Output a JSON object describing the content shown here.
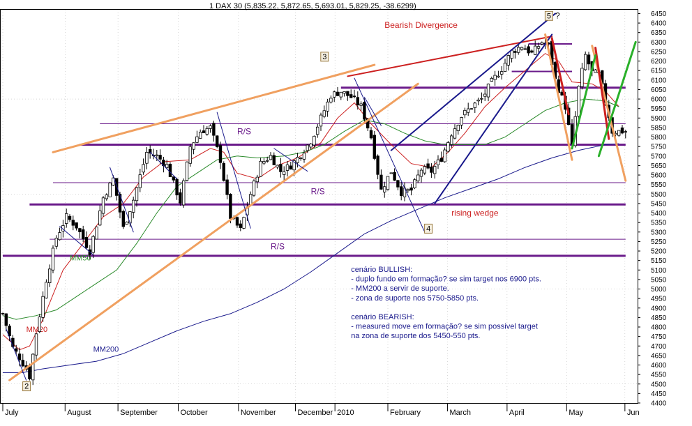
{
  "chart_data": {
    "type": "candlestick",
    "title": "1 DAX 30 (5,835.22, 5,872.65, 5,693.01, 5,829.25, -38.6299)",
    "y_ticks": [
      4400,
      4450,
      4500,
      4550,
      4600,
      4650,
      4700,
      4750,
      4800,
      4850,
      4900,
      4950,
      5000,
      5050,
      5100,
      5150,
      5200,
      5250,
      5300,
      5350,
      5400,
      5450,
      5500,
      5550,
      5600,
      5650,
      5700,
      5750,
      5800,
      5850,
      5900,
      5950,
      6000,
      6050,
      6100,
      6150,
      6200,
      6250,
      6300,
      6350,
      6400,
      6450
    ],
    "ylim": [
      4400,
      6470
    ],
    "x_labels": [
      "July",
      "August",
      "September",
      "October",
      "November",
      "December",
      "2010",
      "February",
      "March",
      "April",
      "May",
      "Jun"
    ],
    "x_label_at": [
      0,
      18.6,
      34.4,
      52.4,
      70.4,
      87.4,
      99.2,
      115,
      132.8,
      150.6,
      168.4,
      185.8
    ],
    "n_bars": 187,
    "anchors": [
      [
        0,
        4870
      ],
      [
        3,
        4690
      ],
      [
        5,
        4640
      ],
      [
        7,
        4580
      ],
      [
        8,
        4540
      ],
      [
        10,
        4770
      ],
      [
        13,
        5050
      ],
      [
        16,
        5270
      ],
      [
        19,
        5380
      ],
      [
        22,
        5330
      ],
      [
        26,
        5200
      ],
      [
        30,
        5480
      ],
      [
        33,
        5580
      ],
      [
        36,
        5320
      ],
      [
        39,
        5470
      ],
      [
        43,
        5720
      ],
      [
        46,
        5700
      ],
      [
        49,
        5650
      ],
      [
        53,
        5460
      ],
      [
        56,
        5750
      ],
      [
        59,
        5830
      ],
      [
        62,
        5850
      ],
      [
        65,
        5680
      ],
      [
        68,
        5380
      ],
      [
        71,
        5310
      ],
      [
        74,
        5500
      ],
      [
        77,
        5660
      ],
      [
        80,
        5700
      ],
      [
        83,
        5620
      ],
      [
        86,
        5650
      ],
      [
        89,
        5710
      ],
      [
        92,
        5780
      ],
      [
        95,
        5900
      ],
      [
        98,
        6020
      ],
      [
        101,
        6040
      ],
      [
        104,
        6010
      ],
      [
        107,
        5960
      ],
      [
        110,
        5800
      ],
      [
        113,
        5520
      ],
      [
        116,
        5620
      ],
      [
        119,
        5510
      ],
      [
        122,
        5520
      ],
      [
        125,
        5630
      ],
      [
        128,
        5620
      ],
      [
        131,
        5690
      ],
      [
        134,
        5820
      ],
      [
        137,
        5910
      ],
      [
        140,
        5960
      ],
      [
        143,
        6000
      ],
      [
        146,
        6090
      ],
      [
        149,
        6160
      ],
      [
        152,
        6250
      ],
      [
        155,
        6280
      ],
      [
        158,
        6240
      ],
      [
        161,
        6300
      ],
      [
        163,
        6280
      ],
      [
        165,
        6100
      ],
      [
        168,
        5960
      ],
      [
        170,
        5750
      ],
      [
        172,
        6060
      ],
      [
        174,
        6230
      ],
      [
        176,
        6140
      ],
      [
        178,
        6130
      ],
      [
        180,
        5990
      ],
      [
        182,
        5830
      ],
      [
        184,
        5830
      ]
    ],
    "series": [
      {
        "name": "MM20",
        "color": "#cc2020",
        "points": [
          [
            0,
            4760
          ],
          [
            5,
            4680
          ],
          [
            8,
            4700
          ],
          [
            12,
            4840
          ],
          [
            18,
            5100
          ],
          [
            24,
            5240
          ],
          [
            30,
            5380
          ],
          [
            36,
            5450
          ],
          [
            42,
            5590
          ],
          [
            48,
            5670
          ],
          [
            56,
            5680
          ],
          [
            62,
            5740
          ],
          [
            66,
            5720
          ],
          [
            70,
            5610
          ],
          [
            76,
            5580
          ],
          [
            82,
            5650
          ],
          [
            88,
            5690
          ],
          [
            95,
            5770
          ],
          [
            100,
            5900
          ],
          [
            105,
            5980
          ],
          [
            110,
            5870
          ],
          [
            116,
            5760
          ],
          [
            122,
            5660
          ],
          [
            128,
            5640
          ],
          [
            133,
            5720
          ],
          [
            138,
            5820
          ],
          [
            144,
            5960
          ],
          [
            150,
            6060
          ],
          [
            156,
            6150
          ],
          [
            162,
            6240
          ],
          [
            166,
            6200
          ],
          [
            170,
            6090
          ],
          [
            176,
            6080
          ],
          [
            180,
            6040
          ],
          [
            184,
            5960
          ]
        ]
      },
      {
        "name": "MM50",
        "color": "#2a8a2a",
        "points": [
          [
            0,
            4860
          ],
          [
            4,
            4840
          ],
          [
            10,
            4860
          ],
          [
            16,
            4890
          ],
          [
            22,
            4960
          ],
          [
            28,
            5030
          ],
          [
            34,
            5100
          ],
          [
            40,
            5240
          ],
          [
            46,
            5400
          ],
          [
            52,
            5540
          ],
          [
            58,
            5610
          ],
          [
            64,
            5680
          ],
          [
            70,
            5700
          ],
          [
            76,
            5690
          ],
          [
            84,
            5700
          ],
          [
            90,
            5720
          ],
          [
            96,
            5760
          ],
          [
            102,
            5830
          ],
          [
            108,
            5890
          ],
          [
            114,
            5870
          ],
          [
            120,
            5820
          ],
          [
            126,
            5780
          ],
          [
            132,
            5760
          ],
          [
            138,
            5760
          ],
          [
            144,
            5760
          ],
          [
            150,
            5800
          ],
          [
            156,
            5870
          ],
          [
            162,
            5940
          ],
          [
            168,
            5980
          ],
          [
            174,
            6000
          ],
          [
            180,
            5990
          ],
          [
            184,
            5960
          ]
        ]
      },
      {
        "name": "MM200",
        "color": "#1a1a8c",
        "points": [
          [
            0,
            4560
          ],
          [
            6,
            4560
          ],
          [
            12,
            4580
          ],
          [
            20,
            4600
          ],
          [
            28,
            4620
          ],
          [
            36,
            4660
          ],
          [
            44,
            4720
          ],
          [
            52,
            4780
          ],
          [
            60,
            4830
          ],
          [
            68,
            4870
          ],
          [
            76,
            4930
          ],
          [
            84,
            5000
          ],
          [
            92,
            5090
          ],
          [
            100,
            5190
          ],
          [
            108,
            5290
          ],
          [
            116,
            5360
          ],
          [
            124,
            5420
          ],
          [
            132,
            5480
          ],
          [
            140,
            5530
          ],
          [
            148,
            5580
          ],
          [
            156,
            5640
          ],
          [
            164,
            5690
          ],
          [
            172,
            5730
          ],
          [
            180,
            5760
          ],
          [
            184,
            5765
          ]
        ]
      }
    ],
    "series_labels": [
      {
        "name": "MM20",
        "color": "#cc2020",
        "anchor": [
          7,
          4775
        ]
      },
      {
        "name": "MM50",
        "color": "#2a8a2a",
        "anchor": [
          20,
          5150
        ]
      },
      {
        "name": "MM200",
        "color": "#1a1a8c",
        "anchor": [
          27,
          4670
        ]
      }
    ],
    "horizontal_lines": [
      {
        "y": 5175,
        "x": [
          0,
          186
        ],
        "color": "#6a1a8a",
        "width": 3
      },
      {
        "y": 5262,
        "x": [
          14,
          186
        ],
        "color": "#6a1a8a",
        "width": 1
      },
      {
        "y": 5445,
        "x": [
          8,
          186
        ],
        "color": "#6a1a8a",
        "width": 3
      },
      {
        "y": 5560,
        "x": [
          15,
          186
        ],
        "color": "#6a1a8a",
        "width": 1
      },
      {
        "y": 5760,
        "x": [
          23,
          186
        ],
        "color": "#6a1a8a",
        "width": 3
      },
      {
        "y": 5870,
        "x": [
          29,
          186
        ],
        "color": "#6a1a8a",
        "width": 1
      },
      {
        "y": 6060,
        "x": [
          101,
          186
        ],
        "color": "#6a1a8a",
        "width": 3
      },
      {
        "y": 6145,
        "x": [
          152,
          170
        ],
        "color": "#6a1a8a",
        "width": 2
      },
      {
        "y": 6290,
        "x": [
          157,
          170
        ],
        "color": "#6a1a8a",
        "width": 2
      }
    ],
    "trend_lines": [
      {
        "from": [
          2,
          4520
        ],
        "to": [
          124,
          6080
        ],
        "color": "#f0a060",
        "width": 3
      },
      {
        "from": [
          15,
          5720
        ],
        "to": [
          111,
          6180
        ],
        "color": "#f0a060",
        "width": 3
      },
      {
        "from": [
          103,
          6120
        ],
        "to": [
          164,
          6330
        ],
        "color": "#cc2020",
        "width": 2
      },
      {
        "from": [
          116,
          5730
        ],
        "to": [
          165,
          6450
        ],
        "color": "#1a1a8c",
        "width": 2
      },
      {
        "from": [
          129,
          5450
        ],
        "to": [
          164,
          6340
        ],
        "color": "#1a1a8c",
        "width": 2
      },
      {
        "from": [
          162,
          6340
        ],
        "to": [
          170,
          5680
        ],
        "color": "#f0a060",
        "width": 3
      },
      {
        "from": [
          176,
          6280
        ],
        "to": [
          186,
          5570
        ],
        "color": "#f0a060",
        "width": 3
      },
      {
        "from": [
          164,
          6320
        ],
        "to": [
          169,
          5920
        ],
        "color": "#cc2020",
        "width": 3
      },
      {
        "from": [
          177,
          6270
        ],
        "to": [
          181,
          5790
        ],
        "color": "#cc2020",
        "width": 3
      },
      {
        "from": [
          170,
          5740
        ],
        "to": [
          177,
          6230
        ],
        "color": "#2ab02a",
        "width": 3
      },
      {
        "from": [
          178,
          5700
        ],
        "to": [
          189,
          6300
        ],
        "color": "#2ab02a",
        "width": 3
      },
      {
        "from": [
          105,
          6110
        ],
        "to": [
          126,
          5300
        ],
        "color": "#1a1a8c",
        "width": 1
      },
      {
        "from": [
          64,
          5930
        ],
        "to": [
          74,
          5320
        ],
        "color": "#1a1a8c",
        "width": 1
      },
      {
        "from": [
          1,
          4790
        ],
        "to": [
          7,
          4520
        ],
        "color": "#1a1a8c",
        "width": 1
      },
      {
        "from": [
          17,
          5330
        ],
        "to": [
          27,
          5180
        ],
        "color": "#1a1a8c",
        "width": 1
      },
      {
        "from": [
          32,
          5640
        ],
        "to": [
          39,
          5300
        ],
        "color": "#1a1a8c",
        "width": 1
      },
      {
        "from": [
          44,
          5720
        ],
        "to": [
          52,
          5580
        ],
        "color": "#1a1a8c",
        "width": 1
      },
      {
        "from": [
          81,
          5740
        ],
        "to": [
          91,
          5620
        ],
        "color": "#1a1a8c",
        "width": 1
      },
      {
        "from": [
          108,
          6010
        ],
        "to": [
          113,
          5860
        ],
        "color": "#1a1a8c",
        "width": 1
      }
    ],
    "annotations": [
      {
        "text": "Bearish Divergence",
        "color": "#cc2020",
        "anchor": [
          114,
          6375
        ],
        "boxed": false
      },
      {
        "text": "R/S",
        "color": "#6a1a8a",
        "anchor": [
          70,
          5815
        ],
        "boxed": false
      },
      {
        "text": "R/S",
        "color": "#6a1a8a",
        "anchor": [
          92,
          5500
        ],
        "boxed": false
      },
      {
        "text": "R/S",
        "color": "#6a1a8a",
        "anchor": [
          80,
          5210
        ],
        "boxed": false
      },
      {
        "text": "rising wedge",
        "color": "#cc2020",
        "anchor": [
          134,
          5385
        ],
        "boxed": false
      },
      {
        "text": "2",
        "color": "#000000",
        "anchor": [
          7,
          4475
        ],
        "boxed": true
      },
      {
        "text": "3",
        "color": "#000000",
        "anchor": [
          96,
          6210
        ],
        "boxed": true
      },
      {
        "text": "4",
        "color": "#000000",
        "anchor": [
          127,
          5305
        ],
        "boxed": true
      },
      {
        "text": "5",
        "color": "#000000",
        "anchor": [
          163,
          6425
        ],
        "boxed": true
      },
      {
        "text": "?",
        "color": "#000000",
        "anchor": [
          165,
          6425
        ],
        "boxed": false
      }
    ],
    "notes": [
      "cenário BULLISH:",
      "- duplo fundo em formação? se sim target nos 6900 pts.",
      "- MM200  a servir de suporte.",
      "- zona de suporte nos 5750-5850 pts.",
      "",
      "cenário BEARISH:",
      "- measured move em formação? se sim possivel target",
      "na zona de suporte dos 5450-550 pts."
    ],
    "colors": {
      "candle_up": "#ffffff",
      "candle_down": "#000000",
      "candle_edge": "#000000",
      "grid": "#b0b0b0",
      "notes": "#1a1a8c"
    },
    "grid": true,
    "notes_anchor": [
      104,
      5090
    ]
  }
}
